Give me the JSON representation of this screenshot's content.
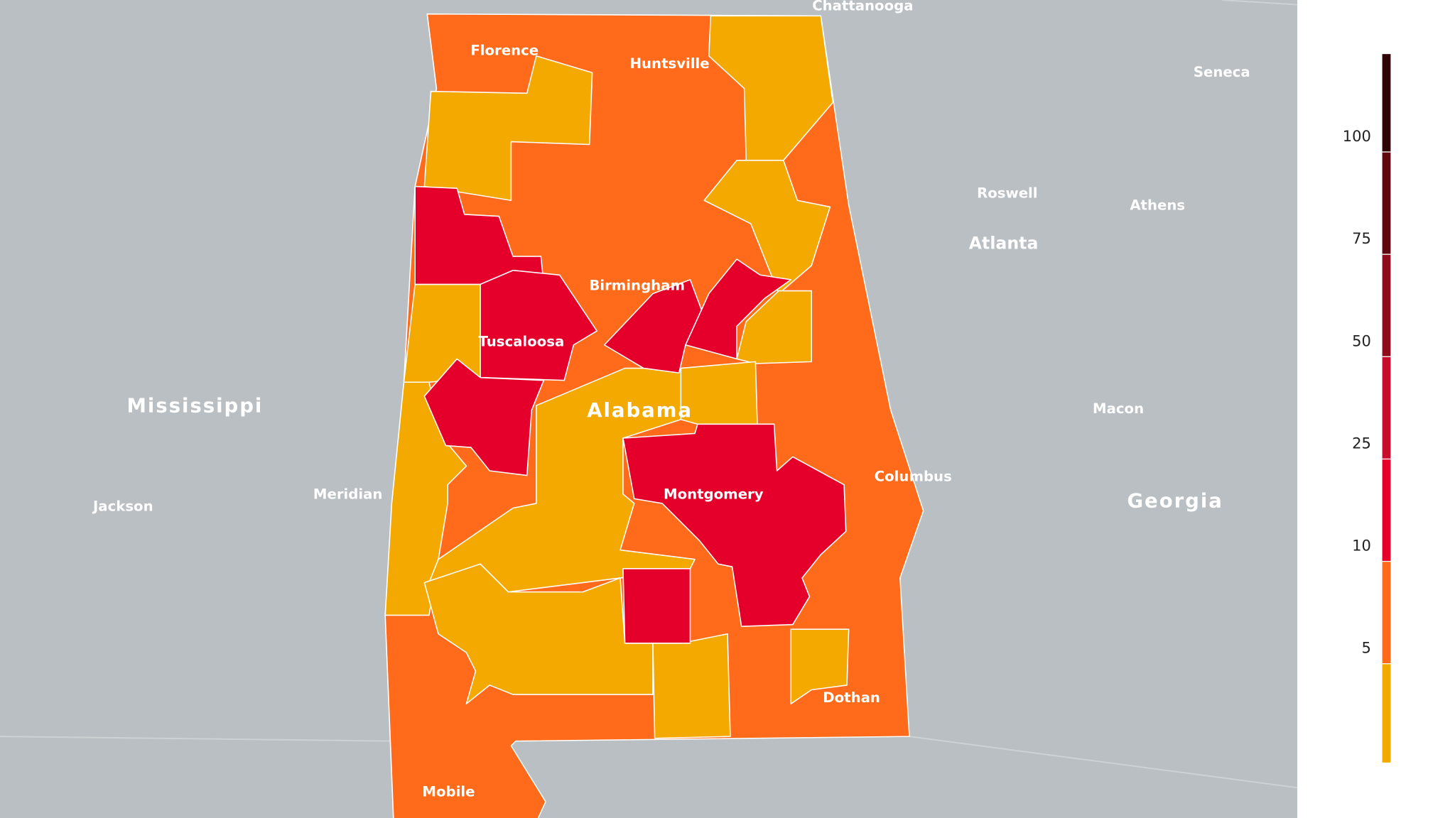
{
  "map": {
    "labels": {
      "states": [
        "Mississippi",
        "Alabama",
        "Georgia"
      ],
      "cities": [
        "Chattanooga",
        "Florence",
        "Huntsville",
        "Seneca",
        "Roswell",
        "Athens",
        "Atlanta",
        "Birmingham",
        "Tuscaloosa",
        "Macon",
        "Columbus",
        "Montgomery",
        "Meridian",
        "Jackson",
        "Dothan",
        "Mobile"
      ]
    },
    "legend": {
      "ticks": [
        5,
        10,
        25,
        50,
        75,
        100
      ],
      "colors": [
        "#f4a900",
        "#ff6b1a",
        "#e4002b",
        "#c50d2c",
        "#8e0c1c",
        "#5e0711",
        "#2e0407"
      ]
    }
  }
}
